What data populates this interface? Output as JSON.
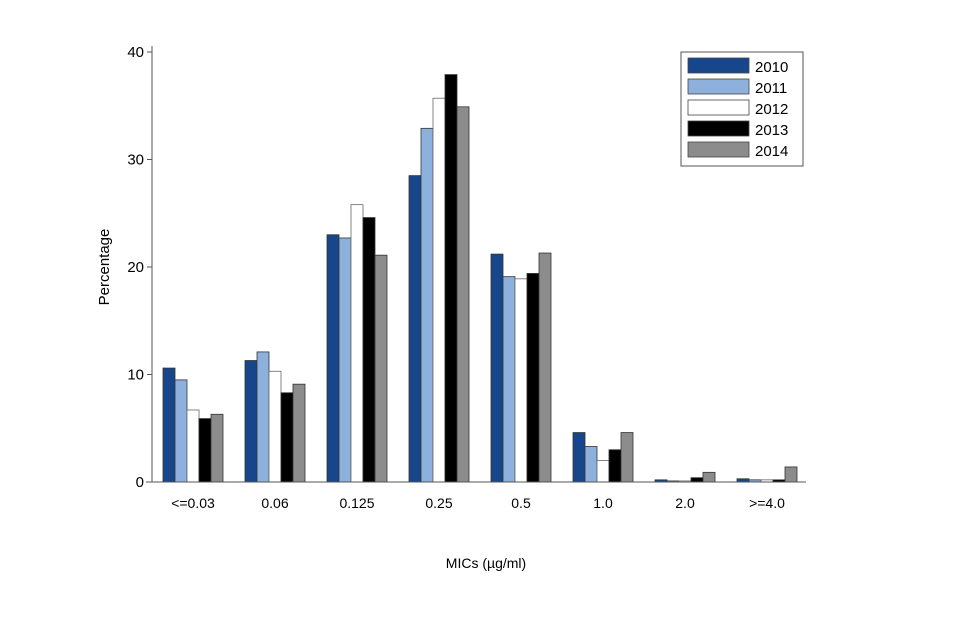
{
  "chart_data": {
    "type": "bar",
    "xlabel": "MICs (µg/ml)",
    "ylabel": "Percentage",
    "ylim": [
      0,
      40
    ],
    "yticks": [
      0,
      10,
      20,
      30,
      40
    ],
    "grid": false,
    "legend_position": "top-right",
    "categories": [
      "<=0.03",
      "0.06",
      "0.125",
      "0.25",
      "0.5",
      "1.0",
      "2.0",
      ">=4.0"
    ],
    "series": [
      {
        "name": "2010",
        "color": "#17478a",
        "values": [
          10.6,
          11.3,
          23.0,
          28.5,
          21.2,
          4.6,
          0.2,
          0.3
        ]
      },
      {
        "name": "2011",
        "color": "#8eb0dc",
        "values": [
          9.5,
          12.1,
          22.7,
          32.9,
          19.1,
          3.3,
          0.1,
          0.2
        ]
      },
      {
        "name": "2012",
        "color": "#ffffff",
        "values": [
          6.7,
          10.3,
          25.8,
          35.7,
          18.9,
          2.0,
          0.1,
          0.2
        ]
      },
      {
        "name": "2013",
        "color": "#000000",
        "values": [
          5.9,
          8.3,
          24.6,
          37.9,
          19.4,
          3.0,
          0.4,
          0.2
        ]
      },
      {
        "name": "2014",
        "color": "#8c8c8c",
        "values": [
          6.3,
          9.1,
          21.1,
          34.9,
          21.3,
          4.6,
          0.9,
          1.4
        ]
      }
    ]
  }
}
